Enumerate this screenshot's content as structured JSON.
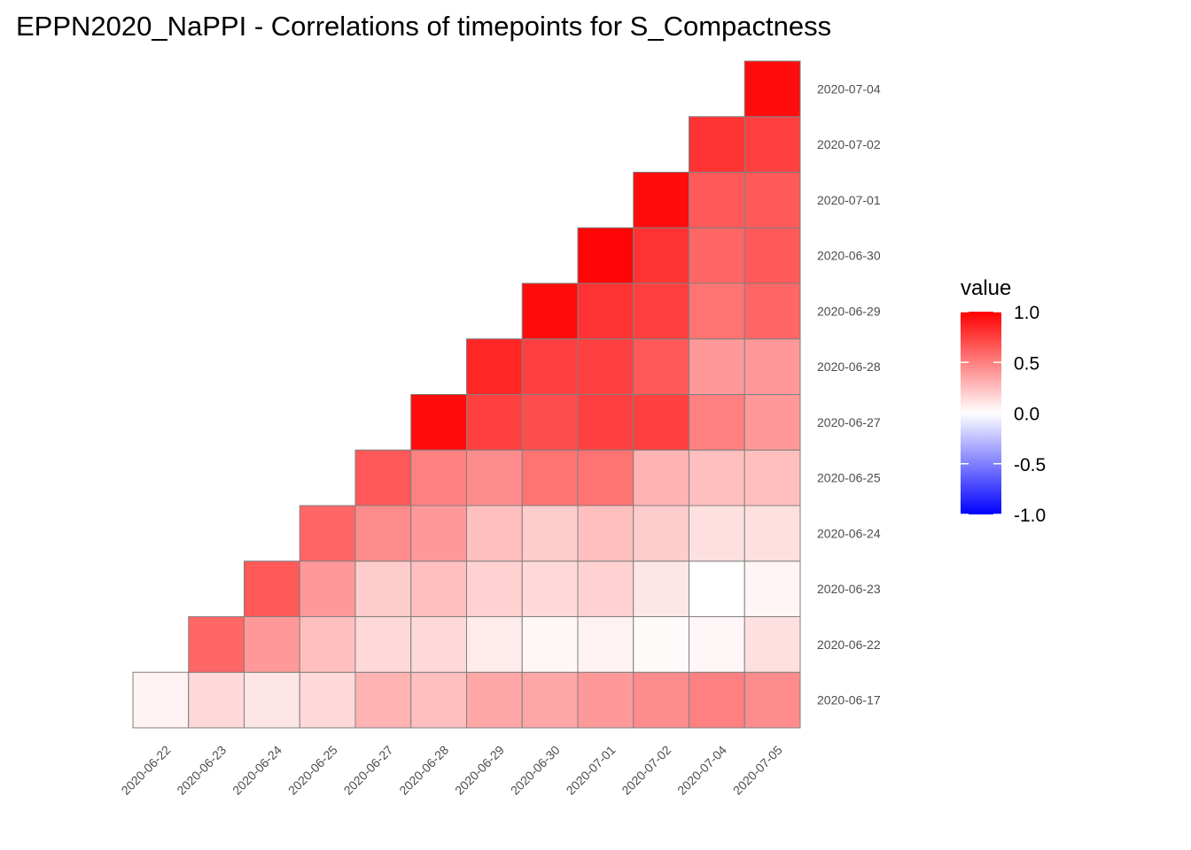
{
  "chart_data": {
    "type": "heatmap",
    "title": "EPPN2020_NaPPI - Correlations of timepoints for S_Compactness",
    "xlabel": "",
    "ylabel": "",
    "x_categories": [
      "2020-06-22",
      "2020-06-23",
      "2020-06-24",
      "2020-06-25",
      "2020-06-27",
      "2020-06-28",
      "2020-06-29",
      "2020-06-30",
      "2020-07-01",
      "2020-07-02",
      "2020-07-04",
      "2020-07-05"
    ],
    "y_categories": [
      "2020-06-17",
      "2020-06-22",
      "2020-06-23",
      "2020-06-24",
      "2020-06-25",
      "2020-06-27",
      "2020-06-28",
      "2020-06-29",
      "2020-06-30",
      "2020-07-01",
      "2020-07-02",
      "2020-07-04"
    ],
    "values": [
      [
        0.05,
        0.15,
        0.1,
        0.15,
        0.3,
        0.25,
        0.35,
        0.35,
        0.4,
        0.45,
        0.5,
        0.45
      ],
      [
        null,
        0.6,
        0.4,
        0.25,
        0.15,
        0.15,
        0.08,
        0.03,
        0.05,
        0.02,
        0.03,
        0.12
      ],
      [
        null,
        null,
        0.65,
        0.4,
        0.2,
        0.25,
        0.18,
        0.15,
        0.18,
        0.1,
        0.0,
        0.04
      ],
      [
        null,
        null,
        null,
        0.6,
        0.45,
        0.4,
        0.25,
        0.2,
        0.25,
        0.2,
        0.12,
        0.12
      ],
      [
        null,
        null,
        null,
        null,
        0.65,
        0.5,
        0.45,
        0.55,
        0.55,
        0.3,
        0.25,
        0.25
      ],
      [
        null,
        null,
        null,
        null,
        null,
        0.95,
        0.75,
        0.7,
        0.75,
        0.75,
        0.5,
        0.4
      ],
      [
        null,
        null,
        null,
        null,
        null,
        null,
        0.85,
        0.75,
        0.75,
        0.65,
        0.4,
        0.4
      ],
      [
        null,
        null,
        null,
        null,
        null,
        null,
        null,
        0.95,
        0.8,
        0.75,
        0.55,
        0.6
      ],
      [
        null,
        null,
        null,
        null,
        null,
        null,
        null,
        null,
        0.98,
        0.8,
        0.6,
        0.65
      ],
      [
        null,
        null,
        null,
        null,
        null,
        null,
        null,
        null,
        null,
        0.95,
        0.65,
        0.65
      ],
      [
        null,
        null,
        null,
        null,
        null,
        null,
        null,
        null,
        null,
        null,
        0.8,
        0.75
      ],
      [
        null,
        null,
        null,
        null,
        null,
        null,
        null,
        null,
        null,
        null,
        null,
        0.95
      ]
    ],
    "legend": {
      "title": "value",
      "ticks": [
        "1.0",
        "0.5",
        "0.0",
        "-0.5",
        "-1.0"
      ],
      "placement": "right"
    },
    "colors": {
      "high": "#ff0000",
      "mid": "#ffffff",
      "low": "#0000ff",
      "border": "#808080"
    },
    "value_range": [
      -1,
      1
    ],
    "grid": false
  }
}
